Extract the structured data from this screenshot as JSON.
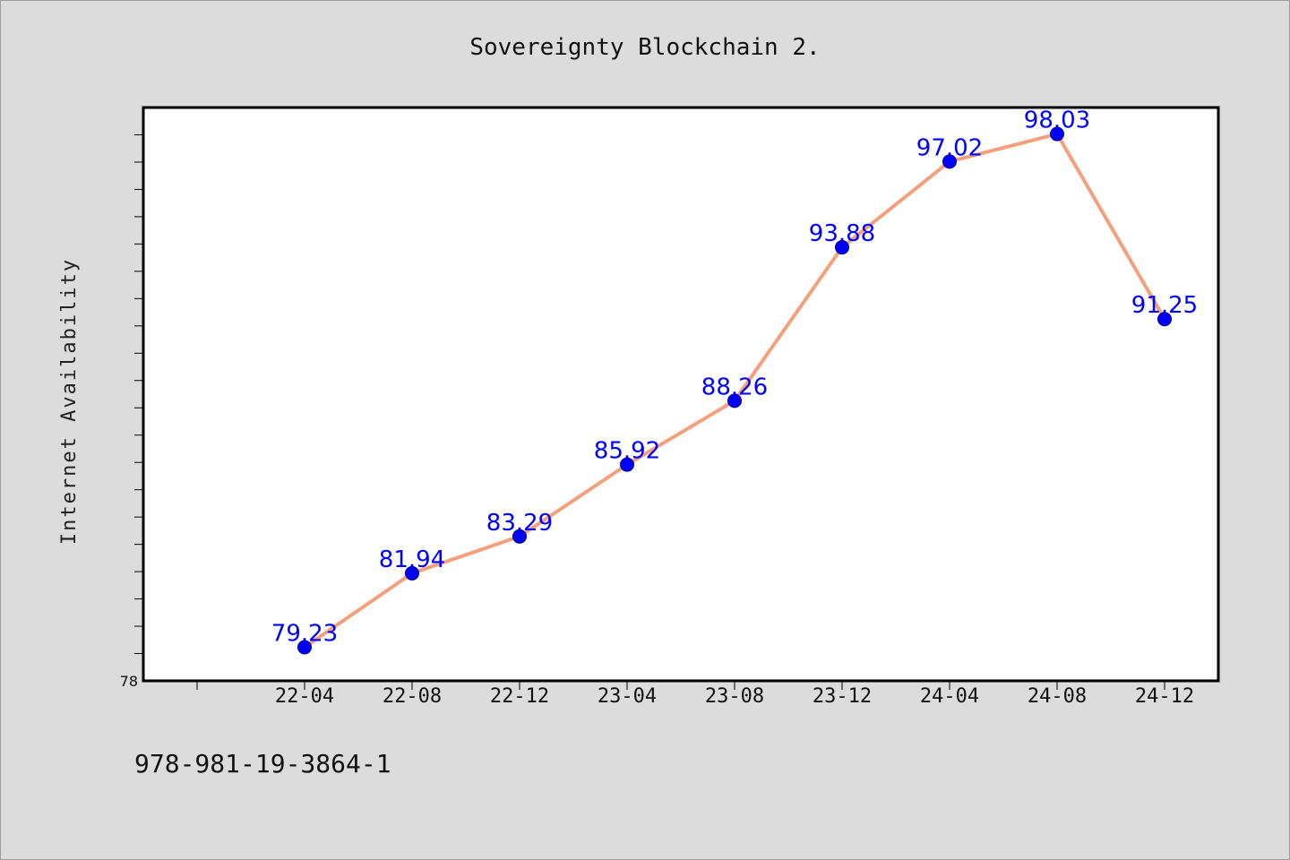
{
  "chart_data": {
    "type": "line",
    "title": "Sovereignty Blockchain 2.",
    "xlabel": "",
    "ylabel": "Internet Availability",
    "categories": [
      "22-04",
      "22-08",
      "22-12",
      "23-04",
      "23-08",
      "23-12",
      "24-04",
      "24-08",
      "24-12"
    ],
    "series": [
      {
        "values": [
          79.23,
          81.94,
          83.29,
          85.92,
          88.26,
          93.88,
          97.02,
          98.03,
          91.25
        ],
        "value_labels": [
          "79.23",
          "81.94",
          "83.29",
          "85.92",
          "88.26",
          "93.88",
          "97.02",
          "98.03",
          "91.25"
        ],
        "line_color": "#f4a07c",
        "marker_color": "#0000ff"
      }
    ],
    "y_tick_labels": [
      "78"
    ],
    "ylim": [
      78,
      99
    ],
    "grid": false,
    "legend": "none"
  },
  "footer": {
    "code": "978-981-19-3864-1"
  },
  "colors": {
    "background": "#dcdcdc",
    "plot_background": "#ffffff",
    "data_label": "#0000ff"
  }
}
